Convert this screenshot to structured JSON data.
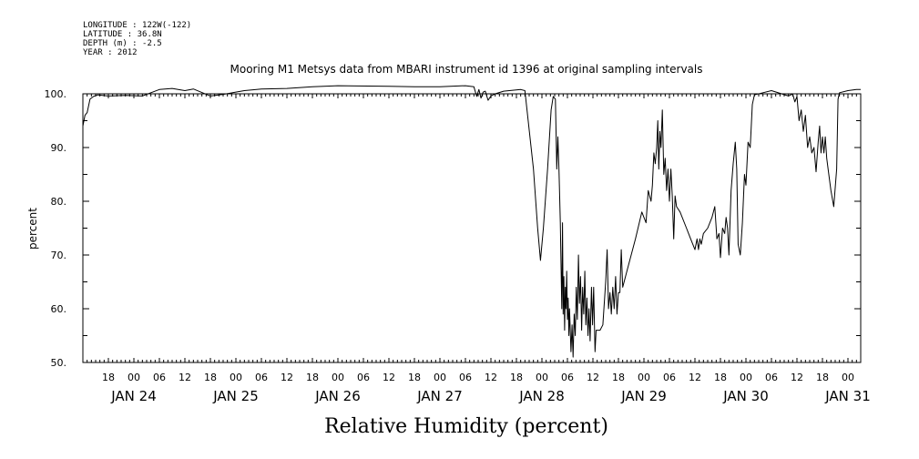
{
  "meta": {
    "longitude": "LONGITUDE : 122W(-122)",
    "latitude": "LATITUDE : 36.8N",
    "depth": "DEPTH (m) : -2.5",
    "year": "YEAR : 2012"
  },
  "chart_data": {
    "type": "line",
    "title": "Mooring M1 Metsys data from MBARI instrument id 1396 at original sampling intervals",
    "xlabel": "Relative Humidity (percent)",
    "ylabel": "percent",
    "ylim": [
      50,
      100
    ],
    "y_ticks": [
      "50.",
      "60.",
      "70.",
      "80.",
      "90.",
      "100."
    ],
    "xlim": [
      "2012-01-23T12:00",
      "2012-01-31T03:00"
    ],
    "hour_ticks": [
      {
        "t": "2012-01-23T18:00",
        "label": "18"
      },
      {
        "t": "2012-01-24T00:00",
        "label": "00"
      },
      {
        "t": "2012-01-24T06:00",
        "label": "06"
      },
      {
        "t": "2012-01-24T12:00",
        "label": "12"
      },
      {
        "t": "2012-01-24T18:00",
        "label": "18"
      },
      {
        "t": "2012-01-25T00:00",
        "label": "00"
      },
      {
        "t": "2012-01-25T06:00",
        "label": "06"
      },
      {
        "t": "2012-01-25T12:00",
        "label": "12"
      },
      {
        "t": "2012-01-25T18:00",
        "label": "18"
      },
      {
        "t": "2012-01-26T00:00",
        "label": "00"
      },
      {
        "t": "2012-01-26T06:00",
        "label": "06"
      },
      {
        "t": "2012-01-26T12:00",
        "label": "12"
      },
      {
        "t": "2012-01-26T18:00",
        "label": "18"
      },
      {
        "t": "2012-01-27T00:00",
        "label": "00"
      },
      {
        "t": "2012-01-27T06:00",
        "label": "06"
      },
      {
        "t": "2012-01-27T12:00",
        "label": "12"
      },
      {
        "t": "2012-01-27T18:00",
        "label": "18"
      },
      {
        "t": "2012-01-28T00:00",
        "label": "00"
      },
      {
        "t": "2012-01-28T06:00",
        "label": "06"
      },
      {
        "t": "2012-01-28T12:00",
        "label": "12"
      },
      {
        "t": "2012-01-28T18:00",
        "label": "18"
      },
      {
        "t": "2012-01-29T00:00",
        "label": "00"
      },
      {
        "t": "2012-01-29T06:00",
        "label": "06"
      },
      {
        "t": "2012-01-29T12:00",
        "label": "12"
      },
      {
        "t": "2012-01-29T18:00",
        "label": "18"
      },
      {
        "t": "2012-01-30T00:00",
        "label": "00"
      },
      {
        "t": "2012-01-30T06:00",
        "label": "06"
      },
      {
        "t": "2012-01-30T12:00",
        "label": "12"
      },
      {
        "t": "2012-01-30T18:00",
        "label": "18"
      },
      {
        "t": "2012-01-31T00:00",
        "label": "00"
      }
    ],
    "date_labels": [
      {
        "t": "2012-01-24T00:00",
        "label": "JAN 24"
      },
      {
        "t": "2012-01-25T00:00",
        "label": "JAN 25"
      },
      {
        "t": "2012-01-26T00:00",
        "label": "JAN 26"
      },
      {
        "t": "2012-01-27T00:00",
        "label": "JAN 27"
      },
      {
        "t": "2012-01-28T00:00",
        "label": "JAN 28"
      },
      {
        "t": "2012-01-29T00:00",
        "label": "JAN 29"
      },
      {
        "t": "2012-01-30T00:00",
        "label": "JAN 30"
      },
      {
        "t": "2012-01-31T00:00",
        "label": "JAN 31"
      }
    ],
    "grid": false,
    "series": [
      {
        "color": "#000000",
        "points": [
          [
            "2012-01-23T12:00",
            94.0
          ],
          [
            "2012-01-23T12:30",
            96.0
          ],
          [
            "2012-01-23T13:00",
            96.5
          ],
          [
            "2012-01-23T13:40",
            99.0
          ],
          [
            "2012-01-23T14:30",
            99.5
          ],
          [
            "2012-01-23T15:30",
            99.8
          ],
          [
            "2012-01-23T18:00",
            99.6
          ],
          [
            "2012-01-23T22:00",
            99.7
          ],
          [
            "2012-01-24T02:00",
            99.6
          ],
          [
            "2012-01-24T04:00",
            100.2
          ],
          [
            "2012-01-24T06:00",
            100.8
          ],
          [
            "2012-01-24T09:00",
            101.0
          ],
          [
            "2012-01-24T12:00",
            100.6
          ],
          [
            "2012-01-24T14:00",
            100.9
          ],
          [
            "2012-01-24T18:00",
            99.6
          ],
          [
            "2012-01-24T21:00",
            99.9
          ],
          [
            "2012-01-25T02:00",
            100.6
          ],
          [
            "2012-01-25T06:00",
            100.9
          ],
          [
            "2012-01-25T12:00",
            101.0
          ],
          [
            "2012-01-25T18:00",
            101.3
          ],
          [
            "2012-01-26T00:00",
            101.5
          ],
          [
            "2012-01-26T12:00",
            101.4
          ],
          [
            "2012-01-26T18:00",
            101.3
          ],
          [
            "2012-01-27T00:00",
            101.3
          ],
          [
            "2012-01-27T06:00",
            101.5
          ],
          [
            "2012-01-27T08:00",
            101.3
          ],
          [
            "2012-01-27T08:40",
            99.5
          ],
          [
            "2012-01-27T09:10",
            100.8
          ],
          [
            "2012-01-27T09:40",
            99.2
          ],
          [
            "2012-01-27T10:10",
            100.3
          ],
          [
            "2012-01-27T10:40",
            100.5
          ],
          [
            "2012-01-27T11:20",
            98.8
          ],
          [
            "2012-01-27T12:00",
            99.6
          ],
          [
            "2012-01-27T13:00",
            100.0
          ],
          [
            "2012-01-27T15:00",
            100.5
          ],
          [
            "2012-01-27T19:00",
            100.8
          ],
          [
            "2012-01-27T20:00",
            100.6
          ],
          [
            "2012-01-27T22:00",
            86.0
          ],
          [
            "2012-01-27T23:00",
            75.0
          ],
          [
            "2012-01-27T23:40",
            69.0
          ],
          [
            "2012-01-28T00:20",
            75.0
          ],
          [
            "2012-01-28T01:20",
            86.0
          ],
          [
            "2012-01-28T02:10",
            97.0
          ],
          [
            "2012-01-28T02:40",
            99.5
          ],
          [
            "2012-01-28T03:10",
            99.0
          ],
          [
            "2012-01-28T03:30",
            86.0
          ],
          [
            "2012-01-28T03:45",
            92.0
          ],
          [
            "2012-01-28T04:00",
            86.0
          ],
          [
            "2012-01-28T04:20",
            76.0
          ],
          [
            "2012-01-28T04:40",
            60.0
          ],
          [
            "2012-01-28T04:50",
            76.0
          ],
          [
            "2012-01-28T05:00",
            59.0
          ],
          [
            "2012-01-28T05:10",
            66.0
          ],
          [
            "2012-01-28T05:20",
            56.0
          ],
          [
            "2012-01-28T05:30",
            64.0
          ],
          [
            "2012-01-28T05:40",
            60.0
          ],
          [
            "2012-01-28T05:50",
            67.0
          ],
          [
            "2012-01-28T06:00",
            58.0
          ],
          [
            "2012-01-28T06:10",
            62.0
          ],
          [
            "2012-01-28T06:20",
            55.0
          ],
          [
            "2012-01-28T06:30",
            60.0
          ],
          [
            "2012-01-28T06:50",
            52.0
          ],
          [
            "2012-01-28T07:05",
            57.0
          ],
          [
            "2012-01-28T07:20",
            51.0
          ],
          [
            "2012-01-28T07:35",
            59.0
          ],
          [
            "2012-01-28T07:50",
            55.0
          ],
          [
            "2012-01-28T08:05",
            64.0
          ],
          [
            "2012-01-28T08:20",
            58.0
          ],
          [
            "2012-01-28T08:35",
            70.0
          ],
          [
            "2012-01-28T08:50",
            61.0
          ],
          [
            "2012-01-28T09:05",
            66.0
          ],
          [
            "2012-01-28T09:20",
            56.0
          ],
          [
            "2012-01-28T09:35",
            64.0
          ],
          [
            "2012-01-28T09:50",
            59.0
          ],
          [
            "2012-01-28T10:05",
            67.0
          ],
          [
            "2012-01-28T10:20",
            57.0
          ],
          [
            "2012-01-28T10:35",
            62.0
          ],
          [
            "2012-01-28T10:50",
            55.0
          ],
          [
            "2012-01-28T11:05",
            60.0
          ],
          [
            "2012-01-28T11:20",
            54.0
          ],
          [
            "2012-01-28T11:40",
            64.0
          ],
          [
            "2012-01-28T11:55",
            57.0
          ],
          [
            "2012-01-28T12:10",
            64.0
          ],
          [
            "2012-01-28T12:30",
            52.0
          ],
          [
            "2012-01-28T12:45",
            56.0
          ],
          [
            "2012-01-28T13:40",
            56.0
          ],
          [
            "2012-01-28T14:20",
            57.0
          ],
          [
            "2012-01-28T15:00",
            65.0
          ],
          [
            "2012-01-28T15:20",
            71.0
          ],
          [
            "2012-01-28T15:40",
            60.0
          ],
          [
            "2012-01-28T16:00",
            63.0
          ],
          [
            "2012-01-28T16:20",
            59.0
          ],
          [
            "2012-01-28T16:40",
            64.0
          ],
          [
            "2012-01-28T17:00",
            60.0
          ],
          [
            "2012-01-28T17:20",
            66.0
          ],
          [
            "2012-01-28T17:40",
            59.0
          ],
          [
            "2012-01-28T18:00",
            63.0
          ],
          [
            "2012-01-28T18:20",
            63.0
          ],
          [
            "2012-01-28T18:40",
            71.0
          ],
          [
            "2012-01-28T19:00",
            64.0
          ],
          [
            "2012-01-28T20:00",
            67.0
          ],
          [
            "2012-01-28T22:00",
            73.0
          ],
          [
            "2012-01-28T23:30",
            78.0
          ],
          [
            "2012-01-29T00:30",
            76.0
          ],
          [
            "2012-01-29T01:00",
            82.0
          ],
          [
            "2012-01-29T01:40",
            80.0
          ],
          [
            "2012-01-29T02:00",
            83.0
          ],
          [
            "2012-01-29T02:20",
            89.0
          ],
          [
            "2012-01-29T02:40",
            87.0
          ],
          [
            "2012-01-29T03:00",
            90.0
          ],
          [
            "2012-01-29T03:15",
            95.0
          ],
          [
            "2012-01-29T03:30",
            86.0
          ],
          [
            "2012-01-29T03:45",
            93.0
          ],
          [
            "2012-01-29T04:00",
            90.0
          ],
          [
            "2012-01-29T04:20",
            97.0
          ],
          [
            "2012-01-29T04:40",
            85.0
          ],
          [
            "2012-01-29T05:00",
            88.0
          ],
          [
            "2012-01-29T05:20",
            82.0
          ],
          [
            "2012-01-29T05:40",
            86.0
          ],
          [
            "2012-01-29T06:00",
            80.0
          ],
          [
            "2012-01-29T06:20",
            86.0
          ],
          [
            "2012-01-29T06:40",
            81.0
          ],
          [
            "2012-01-29T07:00",
            73.0
          ],
          [
            "2012-01-29T07:20",
            81.0
          ],
          [
            "2012-01-29T07:40",
            79.0
          ],
          [
            "2012-01-29T08:30",
            78.0
          ],
          [
            "2012-01-29T10:00",
            75.0
          ],
          [
            "2012-01-29T11:00",
            73.0
          ],
          [
            "2012-01-29T12:00",
            71.0
          ],
          [
            "2012-01-29T12:30",
            73.0
          ],
          [
            "2012-01-29T12:50",
            71.0
          ],
          [
            "2012-01-29T13:10",
            73.0
          ],
          [
            "2012-01-29T13:30",
            72.0
          ],
          [
            "2012-01-29T14:00",
            74.0
          ],
          [
            "2012-01-29T15:00",
            75.0
          ],
          [
            "2012-01-29T16:00",
            77.0
          ],
          [
            "2012-01-29T16:40",
            79.0
          ],
          [
            "2012-01-29T17:10",
            73.0
          ],
          [
            "2012-01-29T17:40",
            74.0
          ],
          [
            "2012-01-29T18:00",
            69.5
          ],
          [
            "2012-01-29T18:30",
            75.0
          ],
          [
            "2012-01-29T19:00",
            74.0
          ],
          [
            "2012-01-29T19:20",
            77.0
          ],
          [
            "2012-01-29T19:40",
            75.0
          ],
          [
            "2012-01-29T20:00",
            70.0
          ],
          [
            "2012-01-29T20:30",
            82.0
          ],
          [
            "2012-01-29T21:00",
            87.0
          ],
          [
            "2012-01-29T21:30",
            91.0
          ],
          [
            "2012-01-29T21:50",
            86.0
          ],
          [
            "2012-01-29T22:10",
            72.0
          ],
          [
            "2012-01-29T22:40",
            70.0
          ],
          [
            "2012-01-29T23:10",
            76.0
          ],
          [
            "2012-01-29T23:40",
            85.0
          ],
          [
            "2012-01-30T00:00",
            83.0
          ],
          [
            "2012-01-30T00:30",
            91.0
          ],
          [
            "2012-01-30T01:00",
            90.0
          ],
          [
            "2012-01-30T01:30",
            98.0
          ],
          [
            "2012-01-30T02:00",
            99.8
          ],
          [
            "2012-01-30T04:00",
            100.2
          ],
          [
            "2012-01-30T06:00",
            100.6
          ],
          [
            "2012-01-30T10:00",
            99.6
          ],
          [
            "2012-01-30T11:00",
            100.0
          ],
          [
            "2012-01-30T11:30",
            98.5
          ],
          [
            "2012-01-30T12:00",
            99.5
          ],
          [
            "2012-01-30T12:30",
            95.0
          ],
          [
            "2012-01-30T13:00",
            97.0
          ],
          [
            "2012-01-30T13:30",
            93.0
          ],
          [
            "2012-01-30T14:00",
            96.0
          ],
          [
            "2012-01-30T14:30",
            90.0
          ],
          [
            "2012-01-30T15:00",
            92.0
          ],
          [
            "2012-01-30T15:30",
            89.0
          ],
          [
            "2012-01-30T16:00",
            90.0
          ],
          [
            "2012-01-30T16:30",
            85.5
          ],
          [
            "2012-01-30T17:00",
            91.0
          ],
          [
            "2012-01-30T17:20",
            94.0
          ],
          [
            "2012-01-30T17:40",
            89.0
          ],
          [
            "2012-01-30T18:00",
            92.0
          ],
          [
            "2012-01-30T18:20",
            89.0
          ],
          [
            "2012-01-30T18:40",
            92.0
          ],
          [
            "2012-01-30T19:00",
            88.0
          ],
          [
            "2012-01-30T19:20",
            86.0
          ],
          [
            "2012-01-30T20:00",
            82.0
          ],
          [
            "2012-01-30T20:40",
            79.0
          ],
          [
            "2012-01-30T21:20",
            86.0
          ],
          [
            "2012-01-30T21:40",
            99.0
          ],
          [
            "2012-01-30T22:00",
            100.2
          ],
          [
            "2012-01-31T00:00",
            100.6
          ],
          [
            "2012-01-31T02:00",
            100.8
          ],
          [
            "2012-01-31T03:00",
            100.8
          ]
        ]
      }
    ]
  }
}
